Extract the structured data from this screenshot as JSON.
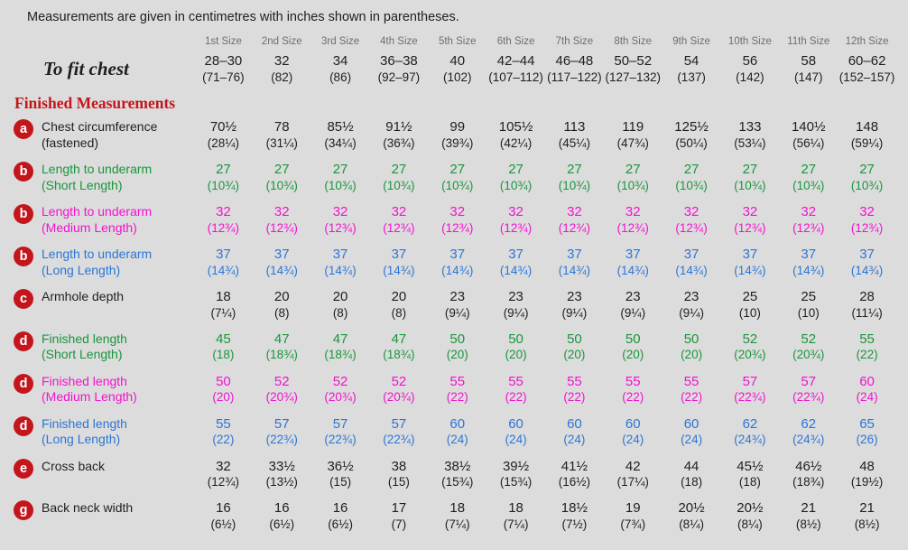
{
  "page": {
    "note": "Measurements are given in centimetres with inches shown in parentheses."
  },
  "colors": {
    "background": "#dcdcdc",
    "text_black": "#1f1f1f",
    "header_gray": "#6e6e6e",
    "red": "#c3161c",
    "green": "#19963c",
    "magenta": "#f312d0",
    "blue": "#2b76d7"
  },
  "table": {
    "sizes": [
      "1st Size",
      "2nd Size",
      "3rd Size",
      "4th Size",
      "5th Size",
      "6th Size",
      "7th Size",
      "8th Size",
      "9th Size",
      "10th Size",
      "11th Size",
      "12th Size"
    ],
    "to_fit_chest": {
      "label": "To fit chest",
      "cm": [
        "28–30",
        "32",
        "34",
        "36–38",
        "40",
        "42–44",
        "46–48",
        "50–52",
        "54",
        "56",
        "58",
        "60–62"
      ],
      "inch": [
        "(71–76)",
        "(82)",
        "(86)",
        "(92–97)",
        "(102)",
        "(107–112)",
        "(117–122)",
        "(127–132)",
        "(137)",
        "(142)",
        "(147)",
        "(152–157)"
      ]
    },
    "section_title": "Finished Measurements",
    "rows": [
      {
        "badge": "a",
        "color": "black",
        "label": "Chest circumference",
        "sublabel": "(fastened)",
        "cm": [
          "70½",
          "78",
          "85½",
          "91½",
          "99",
          "105½",
          "113",
          "119",
          "125½",
          "133",
          "140½",
          "148"
        ],
        "inch": [
          "(28¼)",
          "(31¼)",
          "(34¼)",
          "(36¾)",
          "(39¾)",
          "(42¼)",
          "(45¼)",
          "(47¾)",
          "(50¼)",
          "(53¼)",
          "(56¼)",
          "(59¼)"
        ]
      },
      {
        "badge": "b",
        "color": "green",
        "label": "Length to underarm",
        "sublabel": "(Short Length)",
        "cm": [
          "27",
          "27",
          "27",
          "27",
          "27",
          "27",
          "27",
          "27",
          "27",
          "27",
          "27",
          "27"
        ],
        "inch": [
          "(10¾)",
          "(10¾)",
          "(10¾)",
          "(10¾)",
          "(10¾)",
          "(10¾)",
          "(10¾)",
          "(10¾)",
          "(10¾)",
          "(10¾)",
          "(10¾)",
          "(10¾)"
        ]
      },
      {
        "badge": "b",
        "color": "magenta",
        "label": "Length to underarm",
        "sublabel": "(Medium Length)",
        "cm": [
          "32",
          "32",
          "32",
          "32",
          "32",
          "32",
          "32",
          "32",
          "32",
          "32",
          "32",
          "32"
        ],
        "inch": [
          "(12¾)",
          "(12¾)",
          "(12¾)",
          "(12¾)",
          "(12¾)",
          "(12¾)",
          "(12¾)",
          "(12¾)",
          "(12¾)",
          "(12¾)",
          "(12¾)",
          "(12¾)"
        ]
      },
      {
        "badge": "b",
        "color": "blue",
        "label": "Length to underarm",
        "sublabel": "(Long Length)",
        "cm": [
          "37",
          "37",
          "37",
          "37",
          "37",
          "37",
          "37",
          "37",
          "37",
          "37",
          "37",
          "37"
        ],
        "inch": [
          "(14¾)",
          "(14¾)",
          "(14¾)",
          "(14¾)",
          "(14¾)",
          "(14¾)",
          "(14¾)",
          "(14¾)",
          "(14¾)",
          "(14¾)",
          "(14¾)",
          "(14¾)"
        ]
      },
      {
        "badge": "c",
        "color": "black",
        "label": "Armhole depth",
        "sublabel": "",
        "cm": [
          "18",
          "20",
          "20",
          "20",
          "23",
          "23",
          "23",
          "23",
          "23",
          "25",
          "25",
          "28"
        ],
        "inch": [
          "(7¼)",
          "(8)",
          "(8)",
          "(8)",
          "(9¼)",
          "(9¼)",
          "(9¼)",
          "(9¼)",
          "(9¼)",
          "(10)",
          "(10)",
          "(11¼)"
        ]
      },
      {
        "badge": "d",
        "color": "green",
        "label": "Finished length",
        "sublabel": "(Short Length)",
        "cm": [
          "45",
          "47",
          "47",
          "47",
          "50",
          "50",
          "50",
          "50",
          "50",
          "52",
          "52",
          "55"
        ],
        "inch": [
          "(18)",
          "(18¾)",
          "(18¾)",
          "(18¾)",
          "(20)",
          "(20)",
          "(20)",
          "(20)",
          "(20)",
          "(20¾)",
          "(20¾)",
          "(22)"
        ]
      },
      {
        "badge": "d",
        "color": "magenta",
        "label": "Finished length",
        "sublabel": "(Medium Length)",
        "cm": [
          "50",
          "52",
          "52",
          "52",
          "55",
          "55",
          "55",
          "55",
          "55",
          "57",
          "57",
          "60"
        ],
        "inch": [
          "(20)",
          "(20¾)",
          "(20¾)",
          "(20¾)",
          "(22)",
          "(22)",
          "(22)",
          "(22)",
          "(22)",
          "(22¾)",
          "(22¾)",
          "(24)"
        ]
      },
      {
        "badge": "d",
        "color": "blue",
        "label": "Finished length",
        "sublabel": "(Long Length)",
        "cm": [
          "55",
          "57",
          "57",
          "57",
          "60",
          "60",
          "60",
          "60",
          "60",
          "62",
          "62",
          "65"
        ],
        "inch": [
          "(22)",
          "(22¾)",
          "(22¾)",
          "(22¾)",
          "(24)",
          "(24)",
          "(24)",
          "(24)",
          "(24)",
          "(24¾)",
          "(24¾)",
          "(26)"
        ]
      },
      {
        "badge": "e",
        "color": "black",
        "label": "Cross back",
        "sublabel": "",
        "cm": [
          "32",
          "33½",
          "36½",
          "38",
          "38½",
          "39½",
          "41½",
          "42",
          "44",
          "45½",
          "46½",
          "48"
        ],
        "inch": [
          "(12¾)",
          "(13½)",
          "(15)",
          "(15)",
          "(15¾)",
          "(15¾)",
          "(16½)",
          "(17¼)",
          "(18)",
          "(18)",
          "(18¾)",
          "(19½)"
        ]
      },
      {
        "badge": "g",
        "color": "black",
        "label": "Back neck width",
        "sublabel": "",
        "cm": [
          "16",
          "16",
          "16",
          "17",
          "18",
          "18",
          "18½",
          "19",
          "20½",
          "20½",
          "21",
          "21"
        ],
        "inch": [
          "(6½)",
          "(6½)",
          "(6½)",
          "(7)",
          "(7¼)",
          "(7¼)",
          "(7½)",
          "(7¾)",
          "(8¼)",
          "(8¼)",
          "(8½)",
          "(8½)"
        ]
      }
    ]
  }
}
